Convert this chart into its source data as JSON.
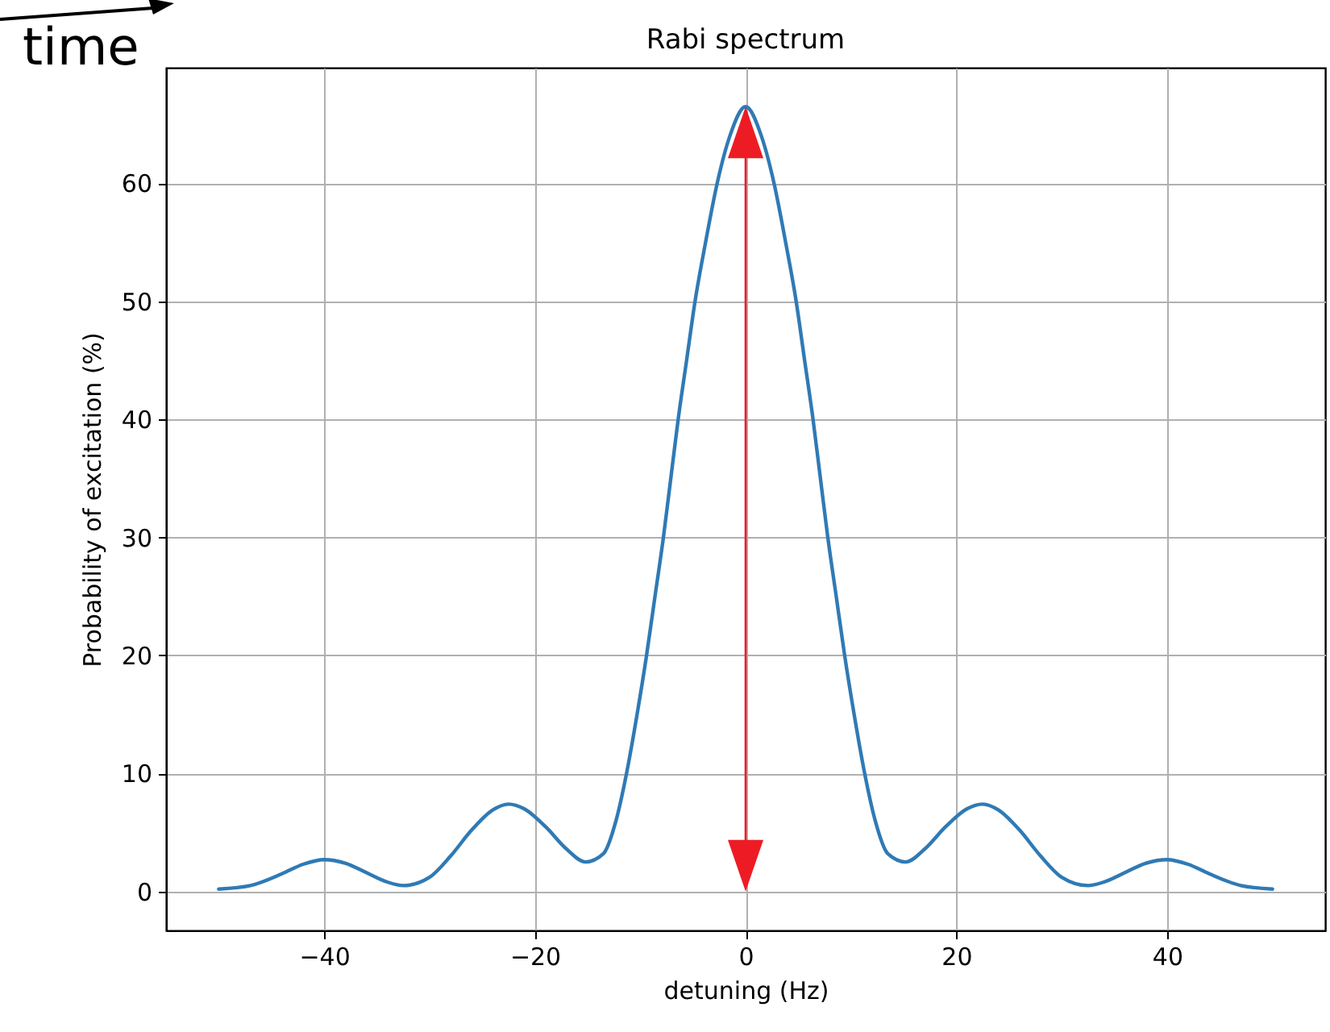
{
  "chart_data": {
    "type": "line",
    "title": "Rabi spectrum",
    "xlabel": "detuning (Hz)",
    "ylabel": "Probability of excitation (%)",
    "annotations": [
      "time"
    ],
    "x": [
      -50,
      -47,
      -44,
      -42,
      -40,
      -38,
      -36,
      -34,
      -32.5,
      -30,
      -28,
      -26,
      -24,
      -22.5,
      -21,
      -19,
      -17,
      -15.2,
      -13.5,
      -12.3,
      -11.3,
      -10.3,
      -9.4,
      -8.6,
      -7.8,
      -7.1,
      -6.4,
      -5.6,
      -4.8,
      -3.8,
      -2.7,
      -1.5,
      0,
      1.5,
      2.7,
      3.8,
      4.8,
      5.6,
      6.4,
      7.1,
      7.8,
      8.6,
      9.4,
      10.3,
      11.3,
      12.3,
      13.5,
      15.2,
      17,
      19,
      21,
      22.5,
      24,
      26,
      28,
      30,
      32.5,
      34,
      36,
      38,
      40,
      42,
      44,
      47,
      50
    ],
    "series": [
      {
        "color": "#2f7ab5",
        "values": [
          0.2,
          0.5,
          1.5,
          2.3,
          2.7,
          2.4,
          1.6,
          0.8,
          0.5,
          1.2,
          3.0,
          5.2,
          6.9,
          7.4,
          7.0,
          5.5,
          3.6,
          2.5,
          3.2,
          6,
          10,
          15,
          20,
          25,
          30,
          35,
          40,
          45,
          50,
          55,
          60,
          64,
          66.5,
          64,
          60,
          55,
          50,
          45,
          40,
          35,
          30,
          25,
          20,
          15,
          10,
          6,
          3.2,
          2.5,
          3.6,
          5.5,
          7.0,
          7.4,
          6.9,
          5.2,
          3.0,
          1.2,
          0.5,
          0.8,
          1.6,
          2.4,
          2.7,
          2.3,
          1.5,
          0.5,
          0.2
        ]
      }
    ],
    "ref_lines": [
      {
        "axis": "x",
        "value": 0,
        "color": "#ed1c24"
      }
    ],
    "xlim": [
      -55,
      55
    ],
    "xticks": [
      -40,
      -20,
      0,
      20,
      40
    ],
    "ylim": [
      -3.3,
      69.8
    ],
    "yticks": [
      0,
      10,
      20,
      30,
      40,
      50,
      60
    ],
    "grid": true,
    "marker": "none",
    "line_style": "solid"
  }
}
